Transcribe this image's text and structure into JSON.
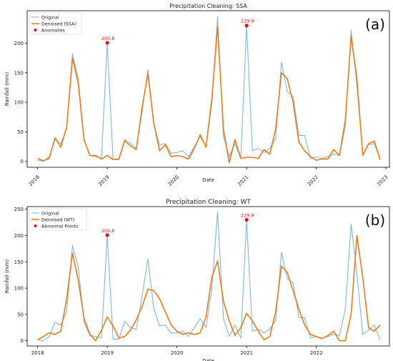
{
  "chart_data": [
    {
      "type": "line",
      "title": "Precipitation Cleaning: SSA",
      "panel_label": "(a)",
      "xlabel": "Date",
      "ylabel": "Rainfall (mm)",
      "xlim": [
        2017.85,
        2023.05
      ],
      "ylim": [
        -10,
        255
      ],
      "x_ticks": [
        2018,
        2019,
        2020,
        2021,
        2022,
        2023
      ],
      "y_ticks": [
        0,
        50,
        100,
        150,
        200
      ],
      "grid": false,
      "legend_position": "top-left",
      "x": [
        2018.0,
        2018.083,
        2018.167,
        2018.25,
        2018.333,
        2018.417,
        2018.5,
        2018.583,
        2018.667,
        2018.75,
        2018.833,
        2018.917,
        2019.0,
        2019.083,
        2019.167,
        2019.25,
        2019.333,
        2019.417,
        2019.5,
        2019.583,
        2019.667,
        2019.75,
        2019.833,
        2019.917,
        2020.0,
        2020.083,
        2020.167,
        2020.25,
        2020.333,
        2020.417,
        2020.5,
        2020.583,
        2020.667,
        2020.75,
        2020.833,
        2020.917,
        2021.0,
        2021.083,
        2021.167,
        2021.25,
        2021.333,
        2021.417,
        2021.5,
        2021.583,
        2021.667,
        2021.75,
        2021.833,
        2021.917,
        2022.0,
        2022.083,
        2022.167,
        2022.25,
        2022.333,
        2022.417,
        2022.5,
        2022.583,
        2022.667,
        2022.75,
        2022.833,
        2022.917
      ],
      "series": [
        {
          "name": "Original",
          "color": "#7fb8dc",
          "values": [
            2,
            0,
            8,
            37,
            30,
            55,
            182,
            140,
            35,
            10,
            8,
            6,
            200,
            3,
            3,
            37,
            30,
            22,
            85,
            155,
            62,
            28,
            30,
            14,
            15,
            18,
            8,
            25,
            42,
            25,
            98,
            245,
            42,
            8,
            30,
            5,
            230,
            18,
            22,
            15,
            22,
            38,
            168,
            118,
            110,
            44,
            44,
            5,
            8,
            5,
            8,
            12,
            10,
            60,
            222,
            128,
            12,
            28,
            30,
            4
          ]
        },
        {
          "name": "Denoised (SSA)",
          "color": "#f07a1a",
          "values": [
            5,
            1,
            5,
            40,
            24,
            58,
            175,
            132,
            36,
            10,
            10,
            4,
            10,
            3,
            4,
            35,
            26,
            20,
            92,
            148,
            65,
            18,
            28,
            8,
            10,
            8,
            4,
            22,
            45,
            24,
            105,
            228,
            55,
            -2,
            37,
            5,
            7,
            7,
            5,
            20,
            12,
            55,
            150,
            140,
            100,
            33,
            18,
            8,
            2,
            4,
            4,
            20,
            10,
            70,
            212,
            140,
            10,
            30,
            34,
            3
          ]
        }
      ],
      "annotations": [
        {
          "label": "200.8",
          "x": 2019.0,
          "y": 200.8
        },
        {
          "label": "229.9",
          "x": 2021.0,
          "y": 229.9
        }
      ],
      "anomalies_label": "Anomalies",
      "anomaly_color": "#ee1111"
    },
    {
      "type": "line",
      "title": "Precipitation Cleaning: WT",
      "panel_label": "(b)",
      "xlabel": "Date",
      "ylabel": "Rainfall (mm)",
      "xlim": [
        2017.85,
        2023.05
      ],
      "ylim": [
        -10,
        255
      ],
      "x_ticks": [
        2018,
        2019,
        2020,
        2021,
        2022
      ],
      "y_ticks": [
        0,
        50,
        100,
        150,
        200,
        250
      ],
      "grid": false,
      "legend_position": "top-left",
      "x": [
        2018.0,
        2018.083,
        2018.167,
        2018.25,
        2018.333,
        2018.417,
        2018.5,
        2018.583,
        2018.667,
        2018.75,
        2018.833,
        2018.917,
        2019.0,
        2019.083,
        2019.167,
        2019.25,
        2019.333,
        2019.417,
        2019.5,
        2019.583,
        2019.667,
        2019.75,
        2019.833,
        2019.917,
        2020.0,
        2020.083,
        2020.167,
        2020.25,
        2020.333,
        2020.417,
        2020.5,
        2020.583,
        2020.667,
        2020.75,
        2020.833,
        2020.917,
        2021.0,
        2021.083,
        2021.167,
        2021.25,
        2021.333,
        2021.417,
        2021.5,
        2021.583,
        2021.667,
        2021.75,
        2021.833,
        2021.917,
        2022.0,
        2022.083,
        2022.167,
        2022.25,
        2022.333,
        2022.417,
        2022.5,
        2022.583,
        2022.667,
        2022.75,
        2022.833,
        2022.917
      ],
      "series": [
        {
          "name": "Original",
          "color": "#7fb8dc",
          "values": [
            2,
            0,
            8,
            35,
            30,
            55,
            181,
            140,
            35,
            10,
            8,
            6,
            200,
            3,
            3,
            37,
            25,
            22,
            85,
            155,
            62,
            28,
            30,
            14,
            15,
            18,
            8,
            25,
            42,
            25,
            98,
            245,
            42,
            8,
            30,
            5,
            230,
            18,
            22,
            15,
            22,
            38,
            168,
            118,
            110,
            44,
            44,
            5,
            8,
            5,
            8,
            12,
            10,
            60,
            222,
            128,
            12,
            20,
            30,
            2
          ]
        },
        {
          "name": "Denoised (WT)",
          "color": "#f07a1a",
          "values": [
            2,
            8,
            15,
            12,
            18,
            80,
            167,
            115,
            42,
            12,
            0,
            20,
            45,
            28,
            5,
            8,
            20,
            40,
            65,
            98,
            95,
            80,
            55,
            30,
            18,
            12,
            15,
            12,
            15,
            45,
            120,
            152,
            75,
            38,
            10,
            25,
            52,
            38,
            18,
            2,
            8,
            55,
            142,
            130,
            95,
            60,
            30,
            12,
            8,
            4,
            10,
            18,
            0,
            0,
            50,
            200,
            120,
            25,
            18,
            30
          ]
        }
      ],
      "annotations": [
        {
          "label": "200.8",
          "x": 2019.0,
          "y": 200.8
        },
        {
          "label": "229.9",
          "x": 2021.0,
          "y": 229.9
        }
      ],
      "anomalies_label": "Abnormal Points",
      "anomaly_color": "#ee1111"
    }
  ]
}
